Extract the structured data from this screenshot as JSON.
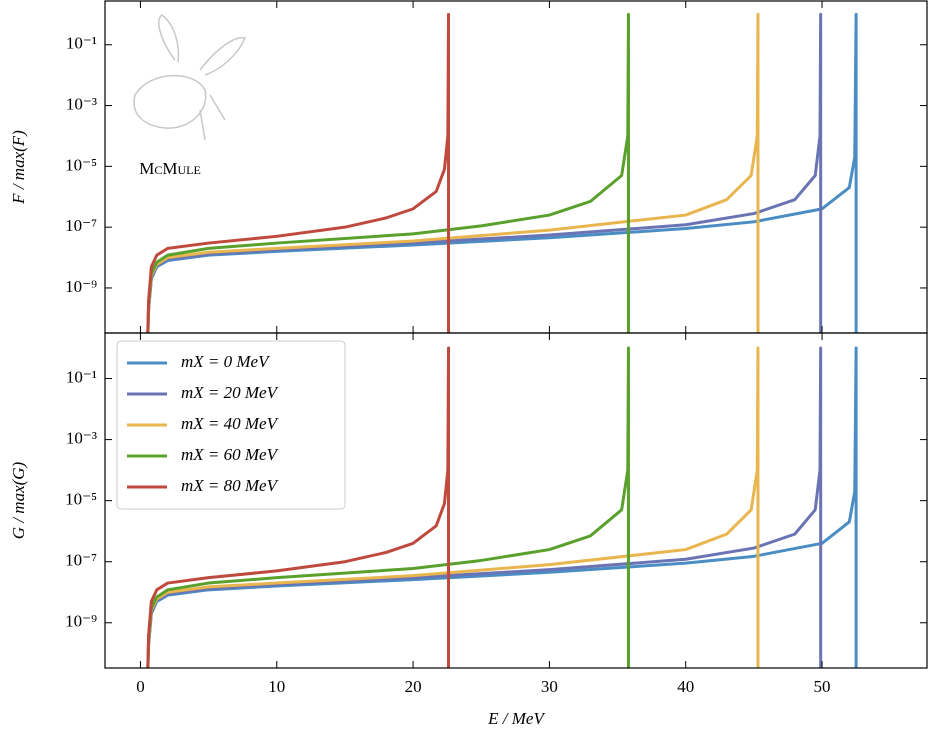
{
  "chart_data": [
    {
      "type": "line",
      "ylabel": "F / max(F)",
      "watermark": "McMule",
      "log_y": true,
      "xlim": [
        -2.6,
        57.7
      ],
      "xticks": [
        0,
        10,
        20,
        30,
        40,
        50
      ],
      "ylim": [
        3.3e-11,
        2.75
      ],
      "yticks": [
        {
          "value": 0.1,
          "label": "10⁻¹"
        },
        {
          "value": 0.001,
          "label": "10⁻³"
        },
        {
          "value": 1e-05,
          "label": "10⁻⁵"
        },
        {
          "value": 1e-07,
          "label": "10⁻⁷"
        },
        {
          "value": 1e-09,
          "label": "10⁻⁹"
        }
      ],
      "series": [
        {
          "name": "mX = 0 MeV",
          "color": "#4a8cc4",
          "x": [
            0.511,
            0.6,
            0.8,
            1.2,
            2,
            5,
            10,
            20,
            30,
            40,
            45,
            50,
            52,
            52.4,
            52.5,
            52.5
          ],
          "values": [
            1e-11,
            2e-10,
            2e-09,
            5e-09,
            8e-09,
            1.2e-08,
            1.6e-08,
            2.6e-08,
            4.5e-08,
            9e-08,
            1.5e-07,
            4e-07,
            2e-06,
            2e-05,
            1,
            1e-11
          ]
        },
        {
          "name": "mX = 20 MeV",
          "color": "#6a74b4",
          "x": [
            0.511,
            0.6,
            0.8,
            1.2,
            2,
            5,
            10,
            20,
            30,
            40,
            45,
            48,
            49.5,
            49.85,
            49.9,
            49.9
          ],
          "values": [
            1e-11,
            2e-10,
            2.2e-09,
            5.5e-09,
            9e-09,
            1.3e-08,
            1.8e-08,
            3e-08,
            5.5e-08,
            1.2e-07,
            2.8e-07,
            8e-07,
            5e-06,
            0.0001,
            1,
            1e-11
          ]
        },
        {
          "name": "mX = 40 MeV",
          "color": "#e8b54e",
          "x": [
            0.511,
            0.6,
            0.8,
            1.2,
            2,
            5,
            10,
            20,
            30,
            40,
            43,
            44.8,
            45.25,
            45.3,
            45.3
          ],
          "values": [
            1e-11,
            2.5e-10,
            2.6e-09,
            6e-09,
            1e-08,
            1.5e-08,
            2e-08,
            3.5e-08,
            8e-08,
            2.5e-07,
            8e-07,
            5e-06,
            0.0001,
            1,
            1e-11
          ]
        },
        {
          "name": "mX = 60 MeV",
          "color": "#5aa02c",
          "x": [
            0.511,
            0.6,
            0.8,
            1.2,
            2,
            5,
            10,
            20,
            25,
            30,
            33,
            35.3,
            35.75,
            35.8,
            35.8
          ],
          "values": [
            1e-11,
            3e-10,
            3e-09,
            7e-09,
            1.2e-08,
            2e-08,
            3e-08,
            6e-08,
            1.1e-07,
            2.5e-07,
            7e-07,
            5e-06,
            0.0001,
            1,
            1e-11
          ]
        },
        {
          "name": "mX = 80 MeV",
          "color": "#c0493d",
          "x": [
            0.511,
            0.6,
            0.8,
            1.2,
            2,
            5,
            10,
            15,
            18,
            20,
            21.7,
            22.3,
            22.55,
            22.6,
            22.6
          ],
          "values": [
            1e-11,
            4e-10,
            5e-09,
            1.2e-08,
            2e-08,
            3e-08,
            5e-08,
            1e-07,
            2e-07,
            4e-07,
            1.5e-06,
            8e-06,
            0.0001,
            1,
            1e-11
          ]
        }
      ]
    },
    {
      "type": "line",
      "ylabel": "G / max(G)",
      "xlabel": "E / MeV",
      "log_y": true,
      "legend": "upper left",
      "xlim": [
        -2.6,
        57.7
      ],
      "xticks": [
        0,
        10,
        20,
        30,
        40,
        50
      ],
      "ylim": [
        3.3e-11,
        3.1
      ],
      "yticks": [
        {
          "value": 0.1,
          "label": "10⁻¹"
        },
        {
          "value": 0.001,
          "label": "10⁻³"
        },
        {
          "value": 1e-05,
          "label": "10⁻⁵"
        },
        {
          "value": 1e-07,
          "label": "10⁻⁷"
        },
        {
          "value": 1e-09,
          "label": "10⁻⁹"
        }
      ],
      "series": [
        {
          "name": "mX = 0 MeV",
          "color": "#4a8cc4",
          "x": [
            0.511,
            0.6,
            0.8,
            1.2,
            2,
            5,
            10,
            20,
            30,
            40,
            45,
            50,
            52,
            52.4,
            52.5,
            52.5
          ],
          "values": [
            1e-11,
            2e-10,
            2e-09,
            5e-09,
            8e-09,
            1.2e-08,
            1.6e-08,
            2.6e-08,
            4.5e-08,
            9e-08,
            1.5e-07,
            4e-07,
            2e-06,
            2e-05,
            1,
            1e-11
          ]
        },
        {
          "name": "mX = 20 MeV",
          "color": "#6a74b4",
          "x": [
            0.511,
            0.6,
            0.8,
            1.2,
            2,
            5,
            10,
            20,
            30,
            40,
            45,
            48,
            49.5,
            49.85,
            49.9,
            49.9
          ],
          "values": [
            1e-11,
            2e-10,
            2.2e-09,
            5.5e-09,
            9e-09,
            1.3e-08,
            1.8e-08,
            3e-08,
            5.5e-08,
            1.2e-07,
            2.8e-07,
            8e-07,
            5e-06,
            0.0001,
            1,
            1e-11
          ]
        },
        {
          "name": "mX = 40 MeV",
          "color": "#e8b54e",
          "x": [
            0.511,
            0.6,
            0.8,
            1.2,
            2,
            5,
            10,
            20,
            30,
            40,
            43,
            44.8,
            45.25,
            45.3,
            45.3
          ],
          "values": [
            1e-11,
            2.5e-10,
            2.6e-09,
            6e-09,
            1e-08,
            1.5e-08,
            2e-08,
            3.5e-08,
            8e-08,
            2.5e-07,
            8e-07,
            5e-06,
            0.0001,
            1,
            1e-11
          ]
        },
        {
          "name": "mX = 60 MeV",
          "color": "#5aa02c",
          "x": [
            0.511,
            0.6,
            0.8,
            1.2,
            2,
            5,
            10,
            20,
            25,
            30,
            33,
            35.3,
            35.75,
            35.8,
            35.8
          ],
          "values": [
            1e-11,
            3e-10,
            3e-09,
            7e-09,
            1.2e-08,
            2e-08,
            3e-08,
            6e-08,
            1.1e-07,
            2.5e-07,
            7e-07,
            5e-06,
            0.0001,
            1,
            1e-11
          ]
        },
        {
          "name": "mX = 80 MeV",
          "color": "#c0493d",
          "x": [
            0.511,
            0.6,
            0.8,
            1.2,
            2,
            5,
            10,
            15,
            18,
            20,
            21.7,
            22.3,
            22.55,
            22.6,
            22.6
          ],
          "values": [
            1e-11,
            4e-10,
            5e-09,
            1.2e-08,
            2e-08,
            3e-08,
            5e-08,
            1e-07,
            2e-07,
            4e-07,
            1.5e-06,
            8e-06,
            0.0001,
            1,
            1e-11
          ]
        }
      ]
    }
  ]
}
